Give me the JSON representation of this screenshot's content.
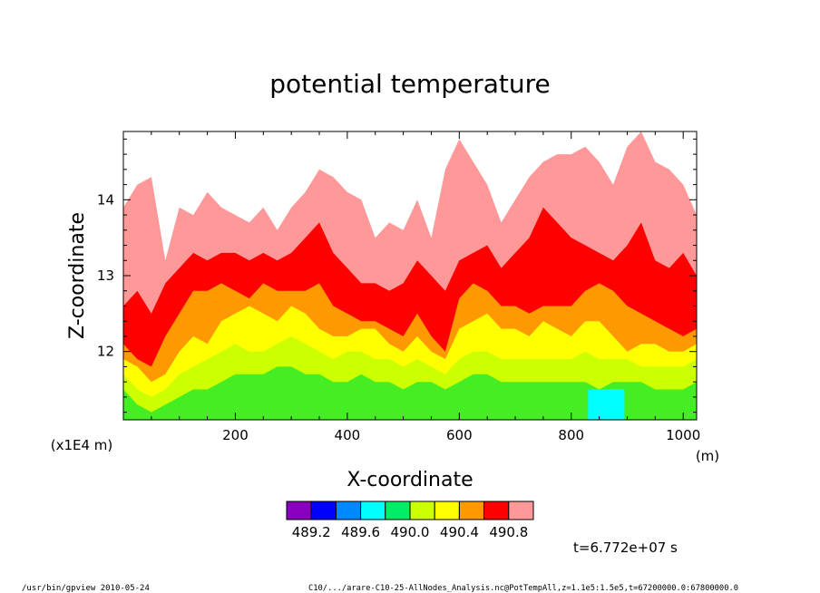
{
  "chart_data": {
    "type": "heatmap",
    "title": "potential temperature",
    "xlabel": "X-coordinate",
    "ylabel": "Z-coordinate",
    "x_unit": "(m)",
    "y_unit": "(x1E4 m)",
    "xlim": [
      0,
      1024
    ],
    "ylim": [
      11.1,
      14.9
    ],
    "x_ticks": [
      200,
      400,
      600,
      800,
      1000
    ],
    "y_ticks": [
      12,
      13,
      14
    ],
    "color_levels": [
      "#8800bb",
      "#0000ff",
      "#0088ff",
      "#00ffff",
      "#00ee66",
      "#44ee22",
      "#ccff00",
      "#ffff00",
      "#ff9900",
      "#ff0000",
      "#ff9999"
    ],
    "colorbar_labels": [
      "489.2",
      "489.6",
      "490.0",
      "490.4",
      "490.8"
    ],
    "contour_boundaries_z": {
      "x": [
        0,
        25,
        50,
        75,
        100,
        125,
        150,
        175,
        200,
        225,
        250,
        275,
        300,
        325,
        350,
        375,
        400,
        425,
        450,
        475,
        500,
        525,
        550,
        575,
        600,
        625,
        650,
        675,
        700,
        725,
        750,
        775,
        800,
        825,
        850,
        875,
        900,
        925,
        950,
        975,
        1000,
        1024
      ],
      "pink_top": [
        13.9,
        14.2,
        14.3,
        13.2,
        13.9,
        13.8,
        14.1,
        13.9,
        13.8,
        13.7,
        13.9,
        13.6,
        13.9,
        14.1,
        14.4,
        14.3,
        14.1,
        14.0,
        13.5,
        13.7,
        13.6,
        14.0,
        13.5,
        14.4,
        14.8,
        14.5,
        14.2,
        13.7,
        14.0,
        14.3,
        14.5,
        14.6,
        14.6,
        14.7,
        14.5,
        14.2,
        14.7,
        14.9,
        14.5,
        14.4,
        14.2,
        13.8
      ],
      "red_top": [
        12.6,
        12.8,
        12.5,
        12.9,
        13.1,
        13.3,
        13.2,
        13.3,
        13.3,
        13.2,
        13.3,
        13.2,
        13.3,
        13.5,
        13.7,
        13.3,
        13.1,
        12.9,
        12.9,
        12.8,
        12.9,
        13.2,
        13.0,
        12.8,
        13.2,
        13.3,
        13.4,
        13.1,
        13.3,
        13.5,
        13.9,
        13.7,
        13.5,
        13.4,
        13.3,
        13.2,
        13.4,
        13.7,
        13.2,
        13.1,
        13.3,
        13.0
      ],
      "orange_top": [
        12.1,
        11.9,
        11.8,
        12.2,
        12.5,
        12.8,
        12.8,
        12.9,
        12.8,
        12.7,
        12.9,
        12.8,
        12.8,
        12.8,
        12.9,
        12.6,
        12.5,
        12.4,
        12.4,
        12.3,
        12.2,
        12.5,
        12.2,
        12.0,
        12.7,
        12.9,
        12.8,
        12.6,
        12.6,
        12.5,
        12.6,
        12.6,
        12.6,
        12.8,
        12.9,
        12.8,
        12.6,
        12.5,
        12.4,
        12.3,
        12.2,
        12.3
      ],
      "yellow_top": [
        11.9,
        11.8,
        11.6,
        11.7,
        12.0,
        12.2,
        12.1,
        12.4,
        12.5,
        12.6,
        12.5,
        12.4,
        12.6,
        12.5,
        12.3,
        12.2,
        12.2,
        12.3,
        12.3,
        12.1,
        12.0,
        12.2,
        12.0,
        11.9,
        12.3,
        12.4,
        12.5,
        12.3,
        12.3,
        12.2,
        12.4,
        12.3,
        12.2,
        12.4,
        12.4,
        12.2,
        12.0,
        12.1,
        12.1,
        12.0,
        12.0,
        12.1
      ],
      "lime_top": [
        11.7,
        11.5,
        11.4,
        11.5,
        11.7,
        11.8,
        11.9,
        12.0,
        12.1,
        12.0,
        12.0,
        12.1,
        12.2,
        12.1,
        12.0,
        11.9,
        12.0,
        12.0,
        11.9,
        11.9,
        11.8,
        11.9,
        11.8,
        11.7,
        11.9,
        12.0,
        12.0,
        11.9,
        11.9,
        11.9,
        11.9,
        11.9,
        11.9,
        12.0,
        11.9,
        11.9,
        11.9,
        11.8,
        11.8,
        11.8,
        11.8,
        11.9
      ],
      "green_top": [
        11.5,
        11.3,
        11.2,
        11.3,
        11.4,
        11.5,
        11.5,
        11.6,
        11.7,
        11.7,
        11.7,
        11.8,
        11.8,
        11.7,
        11.7,
        11.6,
        11.6,
        11.7,
        11.6,
        11.6,
        11.5,
        11.6,
        11.6,
        11.5,
        11.6,
        11.7,
        11.7,
        11.6,
        11.6,
        11.6,
        11.6,
        11.6,
        11.6,
        11.6,
        11.5,
        11.6,
        11.6,
        11.6,
        11.5,
        11.5,
        11.5,
        11.6
      ]
    },
    "cyan_patch": {
      "x": [
        830,
        895
      ],
      "z": [
        11.1,
        11.5
      ]
    }
  },
  "time_label": "t=6.772e+07 s",
  "footer": {
    "left": "/usr/bin/gpview   2010-05-24",
    "right": "C10/.../arare-C10-25-AllNodes_Analysis.nc@PotTempAll,z=1.1e5:1.5e5,t=67200000.0:67800000.0"
  }
}
